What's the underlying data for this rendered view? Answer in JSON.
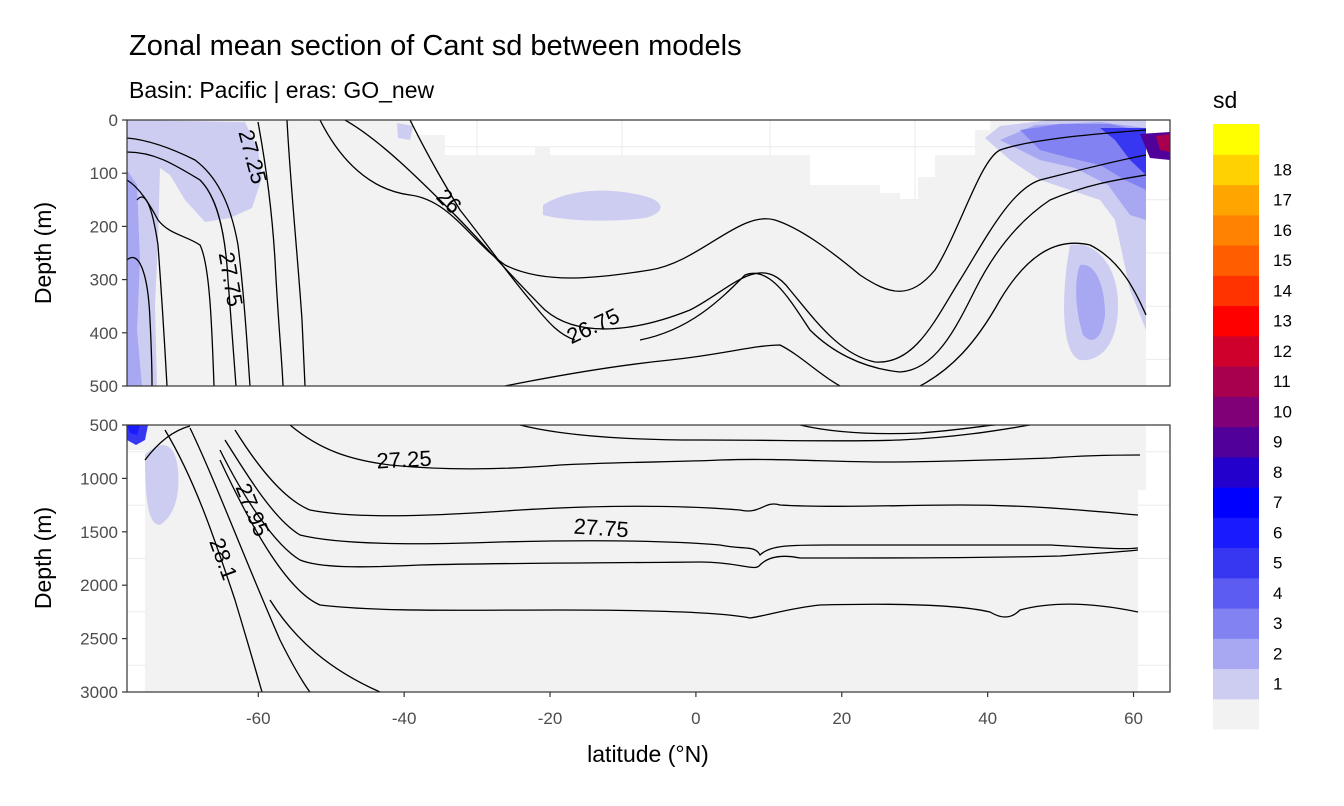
{
  "chart_data": {
    "type": "heatmap",
    "title": "Zonal mean section of Cant sd between models",
    "subtitle": "Basin: Pacific | eras: GO_new",
    "xlabel": "latitude (°N)",
    "ylabel": "Depth (m)",
    "xlim": [
      -78,
      65
    ],
    "x_ticks": [
      -60,
      -40,
      -20,
      0,
      20,
      40,
      60
    ],
    "x_tick_labels": [
      "-60",
      "-40",
      "-20",
      "0",
      "20",
      "40",
      "60"
    ],
    "panels": [
      {
        "name": "upper",
        "ylim": [
          0,
          500
        ],
        "y_ticks": [
          0,
          100,
          200,
          300,
          400,
          500
        ],
        "y_tick_labels": [
          "0",
          "100",
          "200",
          "300",
          "400",
          "500"
        ],
        "ylabel": "Depth (m)",
        "contour_labels": [
          {
            "text": "27.25",
            "lat": -61,
            "depth": 70,
            "angle": 75
          },
          {
            "text": "27.75",
            "lat": -64,
            "depth": 300,
            "angle": 80
          },
          {
            "text": "26",
            "lat": -34,
            "depth": 155,
            "angle": 45
          },
          {
            "text": "26.75",
            "lat": -14,
            "depth": 390,
            "angle": -25
          }
        ]
      },
      {
        "name": "lower",
        "ylim": [
          500,
          3000
        ],
        "y_ticks": [
          500,
          1000,
          1500,
          2000,
          2500,
          3000
        ],
        "y_tick_labels": [
          "500",
          "1000",
          "1500",
          "2000",
          "2500",
          "3000"
        ],
        "ylabel": "Depth (m)",
        "contour_labels": [
          {
            "text": "27.25",
            "lat": -40,
            "depth": 840,
            "angle": -3
          },
          {
            "text": "27.95",
            "lat": -61,
            "depth": 1300,
            "angle": 68
          },
          {
            "text": "27.75",
            "lat": -13,
            "depth": 1480,
            "angle": 4
          },
          {
            "text": "28.1",
            "lat": -65,
            "depth": 1760,
            "angle": 70
          }
        ]
      }
    ],
    "legend": {
      "title": "sd",
      "position": "right",
      "levels": [
        "1",
        "2",
        "3",
        "4",
        "5",
        "6",
        "7",
        "8",
        "9",
        "10",
        "11",
        "12",
        "13",
        "14",
        "15",
        "16",
        "17",
        "18"
      ],
      "colors": [
        "#f2f2f2",
        "#cdcdf2",
        "#a8a8f2",
        "#8282f2",
        "#5c5cf2",
        "#3737f2",
        "#1a1aff",
        "#0000ff",
        "#2400cc",
        "#51009a",
        "#800078",
        "#a8004f",
        "#cf002b",
        "#ff0000",
        "#ff3300",
        "#ff5d00",
        "#ff8200",
        "#ffa500",
        "#ffd200",
        "#ffff00"
      ]
    }
  }
}
